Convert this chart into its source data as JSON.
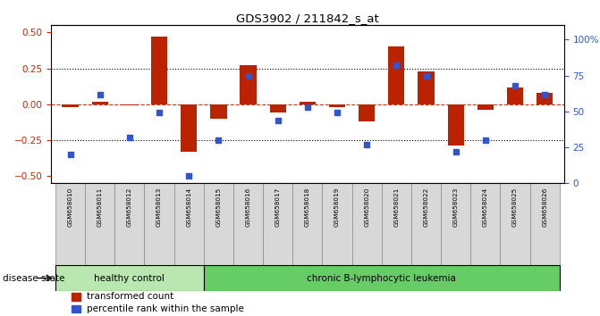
{
  "title": "GDS3902 / 211842_s_at",
  "samples": [
    "GSM658010",
    "GSM658011",
    "GSM658012",
    "GSM658013",
    "GSM658014",
    "GSM658015",
    "GSM658016",
    "GSM658017",
    "GSM658018",
    "GSM658019",
    "GSM658020",
    "GSM658021",
    "GSM658022",
    "GSM658023",
    "GSM658024",
    "GSM658025",
    "GSM658026"
  ],
  "bar_values": [
    -0.02,
    0.02,
    -0.01,
    0.47,
    -0.33,
    -0.1,
    0.27,
    -0.06,
    0.02,
    -0.02,
    -0.12,
    0.4,
    0.23,
    -0.29,
    -0.04,
    0.12,
    0.08
  ],
  "blue_values": [
    20,
    62,
    32,
    49,
    5,
    30,
    75,
    44,
    53,
    49,
    27,
    82,
    75,
    22,
    30,
    68,
    62
  ],
  "bar_color": "#bb2200",
  "blue_color": "#3355cc",
  "healthy_count": 5,
  "disease_label_healthy": "healthy control",
  "disease_label_leukemia": "chronic B-lymphocytic leukemia",
  "disease_state_label": "disease state",
  "legend_bar": "transformed count",
  "legend_blue": "percentile rank within the sample",
  "ylim_left": [
    -0.55,
    0.55
  ],
  "ylim_right": [
    0,
    110
  ],
  "yticks_left": [
    -0.5,
    -0.25,
    0.0,
    0.25,
    0.5
  ],
  "yticks_right": [
    0,
    25,
    50,
    75,
    100
  ],
  "hlines_dotted": [
    -0.25,
    0.25
  ],
  "hline_dashed": 0.0,
  "healthy_color": "#b8e8b0",
  "leukemia_color": "#66cc66",
  "tick_label_color_left": "#cc2200",
  "tick_label_color_right": "#3355cc",
  "background_color": "#ffffff",
  "xlim_left": -0.65,
  "xlim_right": 16.65
}
